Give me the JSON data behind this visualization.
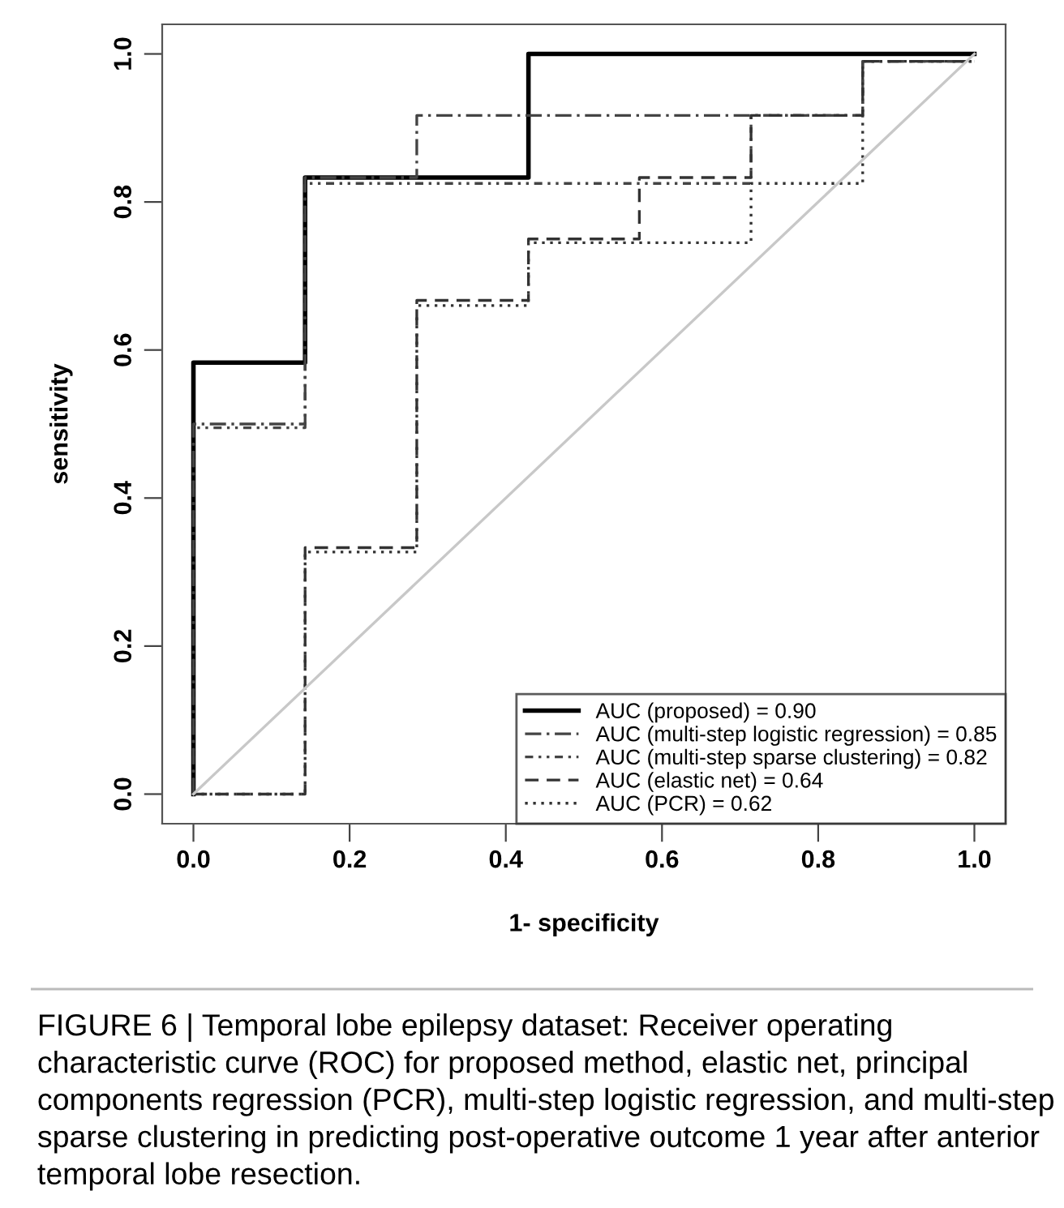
{
  "chart_data": {
    "type": "line",
    "xlabel": "1- specificity",
    "ylabel": "sensitivity",
    "xlim": [
      -0.04,
      1.04
    ],
    "ylim": [
      -0.04,
      1.04
    ],
    "xticks": [
      {
        "value": 0,
        "label": "0.0"
      },
      {
        "value": 0.2,
        "label": "0.2"
      },
      {
        "value": 0.4,
        "label": "0.4"
      },
      {
        "value": 0.6,
        "label": "0.6"
      },
      {
        "value": 0.8,
        "label": "0.8"
      },
      {
        "value": 1,
        "label": "1.0"
      }
    ],
    "yticks": [
      {
        "value": 0,
        "label": "0.0"
      },
      {
        "value": 0.2,
        "label": "0.2"
      },
      {
        "value": 0.4,
        "label": "0.4"
      },
      {
        "value": 0.6,
        "label": "0.6"
      },
      {
        "value": 0.8,
        "label": "0.8"
      },
      {
        "value": 1,
        "label": "1.0"
      }
    ],
    "grid": false,
    "legend": "bottom right",
    "marker": "none",
    "series": [
      {
        "name": "AUC (proposed) = 0.90",
        "color": "#000000",
        "line_style": "solid",
        "x": [
          0,
          0,
          0.143,
          0.143,
          0.429,
          0.429,
          1
        ],
        "values": [
          0,
          0.583,
          0.583,
          0.833,
          0.833,
          1,
          1
        ]
      },
      {
        "name": "AUC (multi-step logistic regression) = 0.85",
        "color": "#444444",
        "line_style": "dashdot",
        "x": [
          0,
          0,
          0.143,
          0.143,
          0.286,
          0.286,
          0.857,
          0.857,
          1
        ],
        "values": [
          0,
          0.5,
          0.5,
          0.833,
          0.833,
          0.917,
          0.917,
          0.99,
          0.99
        ]
      },
      {
        "name": "AUC (multi-step sparse clustering) = 0.82",
        "color": "#444444",
        "line_style": "dashdotdot",
        "x": [
          0,
          0,
          0.143,
          0.143,
          0.714,
          0.714,
          0.857,
          0.857,
          1
        ],
        "values": [
          0,
          0.495,
          0.495,
          0.825,
          0.825,
          0.917,
          0.917,
          0.99,
          0.99
        ]
      },
      {
        "name": "AUC (elastic net) = 0.64",
        "color": "#333333",
        "line_style": "dashed",
        "x": [
          0,
          0.143,
          0.143,
          0.286,
          0.286,
          0.429,
          0.429,
          0.571,
          0.571,
          0.714,
          0.714,
          0.857,
          0.857,
          1
        ],
        "values": [
          0,
          0,
          0.333,
          0.333,
          0.667,
          0.667,
          0.75,
          0.75,
          0.833,
          0.833,
          0.917,
          0.917,
          0.99,
          0.99
        ]
      },
      {
        "name": "AUC (PCR) = 0.62",
        "color": "#333333",
        "line_style": "dotted",
        "x": [
          0,
          0.143,
          0.143,
          0.286,
          0.286,
          0.429,
          0.429,
          0.714,
          0.714,
          0.857,
          0.857,
          1
        ],
        "values": [
          0,
          0,
          0.327,
          0.327,
          0.66,
          0.66,
          0.745,
          0.745,
          0.825,
          0.825,
          0.99,
          0.99
        ]
      },
      {
        "color": "#c8c8c8",
        "line_style": "solid",
        "x": [
          0,
          1
        ],
        "values": [
          0,
          1
        ]
      }
    ],
    "annotations": [
      "FIGURE 6 | Temporal lobe epilepsy dataset: Receiver operating characteristic curve (ROC) for proposed method, elastic net, principal components regression (PCR), multi-step logistic regression, and multi-step sparse clustering in predicting post-operative outcome 1 year after anterior temporal lobe resection."
    ]
  }
}
